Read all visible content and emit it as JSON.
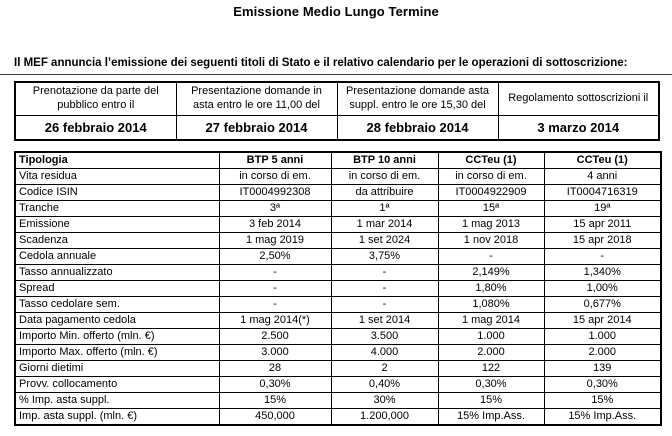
{
  "page": {
    "title": "Emissione Medio Lungo Termine",
    "intro": "Il MEF annuncia l’emissione dei seguenti titoli di Stato e il relativo calendario per le operazioni di sottoscrizione:"
  },
  "calendar": {
    "columns": [
      {
        "header": "Prenotazione da parte del pubblico entro il",
        "date": "26 febbraio 2014"
      },
      {
        "header": "Presentazione domande in asta entro le ore 11,00 del",
        "date": "27 febbraio 2014"
      },
      {
        "header": "Presentazione domande asta suppl. entro le ore 15,30 del",
        "date": "28 febbraio 2014"
      },
      {
        "header": "Regolamento sottoscrizioni il",
        "date": "3 marzo 2014"
      }
    ]
  },
  "securities": {
    "header": {
      "label": "Tipologia",
      "cols": [
        "BTP 5 anni",
        "BTP 10 anni",
        "CCTeu (1)",
        "CCTeu (1)"
      ]
    },
    "rows": [
      {
        "label": "Vita residua",
        "values": [
          "in corso di em.",
          "in corso di em.",
          "in corso di em.",
          "4 anni"
        ]
      },
      {
        "label": "Codice ISIN",
        "values": [
          "IT0004992308",
          "da attribuire",
          "IT0004922909",
          "IT0004716319"
        ]
      },
      {
        "label": "Tranche",
        "values": [
          "3ª",
          "1ª",
          "15ª",
          "19ª"
        ]
      },
      {
        "label": "Emissione",
        "values": [
          "3 feb 2014",
          "1 mar 2014",
          "1 mag 2013",
          "15 apr 2011"
        ]
      },
      {
        "label": "Scadenza",
        "values": [
          "1 mag 2019",
          "1 set 2024",
          "1 nov 2018",
          "15 apr 2018"
        ]
      },
      {
        "label": "Cedola annuale",
        "values": [
          "2,50%",
          "3,75%",
          "-",
          "-"
        ]
      },
      {
        "label": "Tasso annualizzato",
        "values": [
          "-",
          "-",
          "2,149%",
          "1,340%"
        ]
      },
      {
        "label": "Spread",
        "values": [
          "-",
          "-",
          "1,80%",
          "1,00%"
        ]
      },
      {
        "label": "Tasso cedolare sem.",
        "values": [
          "-",
          "-",
          "1,080%",
          "0,677%"
        ]
      },
      {
        "label": "Data pagamento cedola",
        "values": [
          "1 mag 2014(*)",
          "1 set 2014",
          "1 mag 2014",
          "15 apr 2014"
        ]
      },
      {
        "label": "Importo Min. offerto (mln. €)",
        "values": [
          "2.500",
          "3.500",
          "1.000",
          "1.000"
        ]
      },
      {
        "label": "Importo Max. offerto (mln. €)",
        "values": [
          "3.000",
          "4.000",
          "2.000",
          "2.000"
        ]
      },
      {
        "label": "Giorni dietimi",
        "values": [
          "28",
          "2",
          "122",
          "139"
        ]
      },
      {
        "label": "Provv. collocamento",
        "values": [
          "0,30%",
          "0,40%",
          "0,30%",
          "0,30%"
        ]
      },
      {
        "label": "% Imp. asta suppl.",
        "values": [
          "15%",
          "30%",
          "15%",
          "15%"
        ]
      },
      {
        "label": "Imp. asta suppl. (mln. €)",
        "values": [
          "450,000",
          "1.200,000",
          "15% Imp.Ass.",
          "15% Imp.Ass."
        ]
      }
    ]
  }
}
